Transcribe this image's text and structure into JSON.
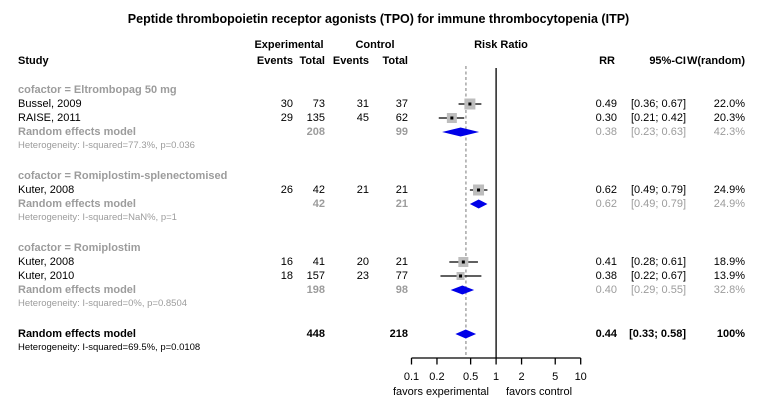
{
  "columns": {
    "study": "Study",
    "experimental": "Experimental",
    "control": "Control",
    "events": "Events",
    "total": "Total",
    "risk_ratio": "Risk Ratio",
    "rr": "RR",
    "ci": "95%-CI",
    "weight": "W(random)"
  },
  "labels": {
    "summary_label": "Random effects model"
  },
  "colors": {
    "square": "#bdbdbd",
    "square_center": "#000000",
    "diamond": "#0000e8",
    "gray_text": "#9c9c9c",
    "dashed_line": "#909090",
    "reference_line": "#000000",
    "axis": "#000000"
  },
  "chart_data": {
    "type": "forest",
    "title": "Peptide thrombopoietin receptor agonists (TPO) for immune thrombocytopenia (ITP)",
    "effect_measure": "Risk Ratio",
    "x_scale": "log10",
    "x_range": [
      0.1,
      10
    ],
    "x_ticks": [
      0.1,
      0.2,
      0.5,
      1,
      2,
      5,
      10
    ],
    "reference_line": 1,
    "summary_line": 0.44,
    "xlabel_left": "favors experimental",
    "xlabel_right": "favors control",
    "legend_position": "none",
    "grid": false,
    "groups": [
      {
        "name": "cofactor = Eltrombopag 50 mg",
        "studies": [
          {
            "study": "Bussel, 2009",
            "events_exp": 30,
            "total_exp": 73,
            "events_ctrl": 31,
            "total_ctrl": 37,
            "rr": 0.49,
            "ci": [
              0.36,
              0.67
            ],
            "weight_pct": 22.0
          },
          {
            "study": "RAISE, 2011",
            "events_exp": 29,
            "total_exp": 135,
            "events_ctrl": 45,
            "total_ctrl": 62,
            "rr": 0.3,
            "ci": [
              0.21,
              0.42
            ],
            "weight_pct": 20.3
          }
        ],
        "summary": {
          "total_exp": 208,
          "total_ctrl": 99,
          "rr": 0.38,
          "ci": [
            0.23,
            0.63
          ],
          "weight_pct": 42.3
        },
        "heterogeneity": "Heterogeneity: I-squared=77.3%, p=0.036"
      },
      {
        "name": "cofactor = Romiplostim-splenectomised",
        "studies": [
          {
            "study": "Kuter, 2008",
            "events_exp": 26,
            "total_exp": 42,
            "events_ctrl": 21,
            "total_ctrl": 21,
            "rr": 0.62,
            "ci": [
              0.49,
              0.79
            ],
            "weight_pct": 24.9
          }
        ],
        "summary": {
          "total_exp": 42,
          "total_ctrl": 21,
          "rr": 0.62,
          "ci": [
            0.49,
            0.79
          ],
          "weight_pct": 24.9
        },
        "heterogeneity": "Heterogeneity: I-squared=NaN%, p=1"
      },
      {
        "name": "cofactor = Romiplostim",
        "studies": [
          {
            "study": "Kuter, 2008",
            "events_exp": 16,
            "total_exp": 41,
            "events_ctrl": 20,
            "total_ctrl": 21,
            "rr": 0.41,
            "ci": [
              0.28,
              0.61
            ],
            "weight_pct": 18.9
          },
          {
            "study": "Kuter, 2010",
            "events_exp": 18,
            "total_exp": 157,
            "events_ctrl": 23,
            "total_ctrl": 77,
            "rr": 0.38,
            "ci": [
              0.22,
              0.67
            ],
            "weight_pct": 13.9
          }
        ],
        "summary": {
          "total_exp": 198,
          "total_ctrl": 98,
          "rr": 0.4,
          "ci": [
            0.29,
            0.55
          ],
          "weight_pct": 32.8
        },
        "heterogeneity": "Heterogeneity: I-squared=0%, p=0.8504"
      }
    ],
    "overall": {
      "total_exp": 448,
      "total_ctrl": 218,
      "rr": 0.44,
      "ci": [
        0.33,
        0.58
      ],
      "weight_pct": 100,
      "heterogeneity": "Heterogeneity: I-squared=69.5%, p=0.0108"
    }
  }
}
